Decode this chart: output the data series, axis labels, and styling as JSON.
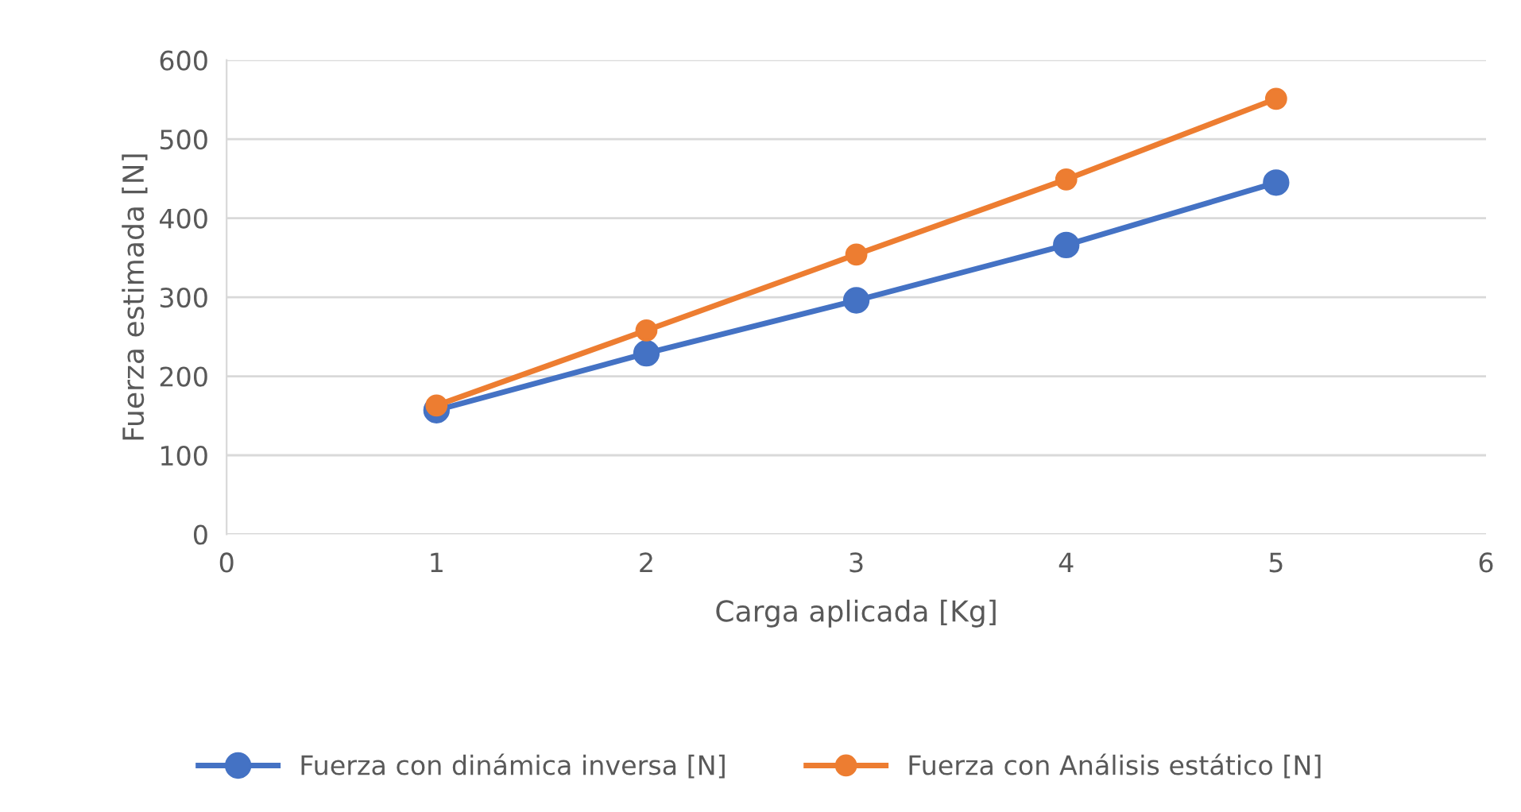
{
  "chart_data": {
    "type": "line",
    "xlabel": "Carga aplicada [Kg]",
    "ylabel": "Fuerza estimada [N]",
    "x": [
      1,
      2,
      3,
      4,
      5
    ],
    "series": [
      {
        "name": "Fuerza con dinámica inversa [N]",
        "color": "#4472c4",
        "values": [
          157,
          229,
          296,
          366,
          445
        ]
      },
      {
        "name": "Fuerza con Análisis estático [N]",
        "color": "#ed7d31",
        "values": [
          163,
          258,
          354,
          449,
          551
        ]
      }
    ],
    "xlim": [
      0,
      6
    ],
    "xticks": [
      0,
      1,
      2,
      3,
      4,
      5,
      6
    ],
    "ylim": [
      0,
      600
    ],
    "yticks": [
      0,
      100,
      200,
      300,
      400,
      500,
      600
    ],
    "grid": "y",
    "legend": "bottom",
    "marker": "circle",
    "line_style": "solid"
  }
}
